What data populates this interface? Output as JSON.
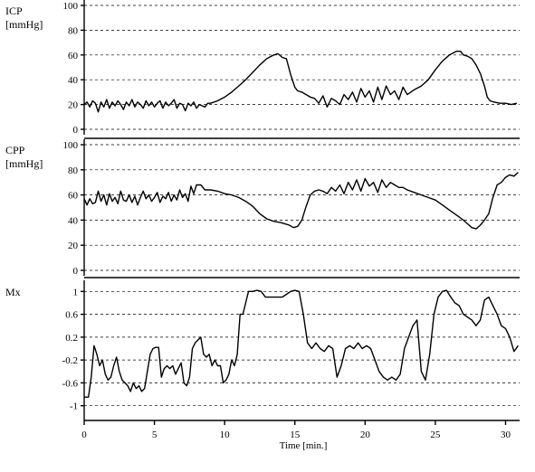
{
  "chart_data": [
    {
      "type": "line",
      "name_label": "ICP",
      "unit_label": "[mmHg]",
      "ylim": [
        0,
        100
      ],
      "yticks": [
        0,
        20,
        40,
        60,
        80,
        100
      ],
      "ytick_labels": [
        "0",
        "20",
        "40",
        "60",
        "80",
        "100"
      ],
      "grid": true,
      "series": [
        {
          "x": [
            0.0,
            0.2,
            0.4,
            0.6,
            0.8,
            1.0,
            1.2,
            1.4,
            1.6,
            1.8,
            2.0,
            2.2,
            2.4,
            2.6,
            2.8,
            3.0,
            3.2,
            3.4,
            3.6,
            3.8,
            4.0,
            4.2,
            4.4,
            4.6,
            4.8,
            5.0,
            5.2,
            5.4,
            5.6,
            5.8,
            6.0,
            6.2,
            6.4,
            6.6,
            6.8,
            7.0,
            7.2,
            7.4,
            7.6,
            7.8,
            8.0,
            8.2,
            8.4,
            8.6,
            8.8,
            9.0,
            9.5,
            10.0,
            10.5,
            11.0,
            11.5,
            12.0,
            12.5,
            13.0,
            13.5,
            13.8,
            14.1,
            14.4,
            14.7,
            15.0,
            15.2,
            15.5,
            15.8,
            16.1,
            16.4,
            16.7,
            17.0,
            17.3,
            17.6,
            17.9,
            18.2,
            18.5,
            18.8,
            19.1,
            19.4,
            19.7,
            20.0,
            20.3,
            20.6,
            20.9,
            21.2,
            21.5,
            21.8,
            22.1,
            22.4,
            22.7,
            23.0,
            23.5,
            24.0,
            24.5,
            25.0,
            25.5,
            26.0,
            26.5,
            26.8,
            27.0,
            27.3,
            27.6,
            27.9,
            28.2,
            28.5,
            28.7,
            28.9,
            29.2,
            29.6,
            30.0,
            30.4,
            30.8
          ],
          "y": [
            20,
            22,
            18,
            23,
            21,
            14,
            22,
            18,
            24,
            17,
            22,
            19,
            23,
            20,
            16,
            22,
            19,
            24,
            18,
            22,
            20,
            17,
            23,
            19,
            22,
            18,
            21,
            23,
            17,
            22,
            19,
            21,
            24,
            17,
            21,
            20,
            15,
            21,
            19,
            22,
            17,
            20,
            19,
            18,
            21,
            21,
            23,
            26,
            30,
            35,
            40,
            46,
            52,
            57,
            60,
            61,
            58,
            57,
            44,
            34,
            31,
            30,
            28,
            26,
            25,
            21,
            27,
            18,
            25,
            23,
            20,
            28,
            24,
            30,
            22,
            33,
            26,
            31,
            22,
            34,
            24,
            35,
            28,
            31,
            24,
            34,
            28,
            32,
            35,
            40,
            48,
            55,
            60,
            63,
            63,
            60,
            59,
            57,
            52,
            45,
            35,
            26,
            23,
            22,
            21,
            21,
            20,
            21
          ]
        }
      ]
    },
    {
      "type": "line",
      "name_label": "CPP",
      "unit_label": "[mmHg]",
      "ylim": [
        0,
        100
      ],
      "yticks": [
        0,
        20,
        40,
        60,
        80,
        100
      ],
      "ytick_labels": [
        "0",
        "20",
        "40",
        "60",
        "80",
        "100"
      ],
      "grid": true,
      "series": [
        {
          "x": [
            0.0,
            0.2,
            0.4,
            0.6,
            0.8,
            1.0,
            1.2,
            1.4,
            1.6,
            1.8,
            2.0,
            2.2,
            2.4,
            2.6,
            2.8,
            3.0,
            3.2,
            3.4,
            3.6,
            3.8,
            4.0,
            4.2,
            4.4,
            4.6,
            4.8,
            5.0,
            5.2,
            5.4,
            5.6,
            5.8,
            6.0,
            6.2,
            6.4,
            6.6,
            6.8,
            7.0,
            7.2,
            7.4,
            7.6,
            7.8,
            8.0,
            8.3,
            8.6,
            9.0,
            9.5,
            10.0,
            10.5,
            11.0,
            11.5,
            12.0,
            12.5,
            13.0,
            13.5,
            14.0,
            14.3,
            14.6,
            14.9,
            15.2,
            15.5,
            15.8,
            16.1,
            16.4,
            16.7,
            17.0,
            17.3,
            17.6,
            17.9,
            18.2,
            18.5,
            18.8,
            19.1,
            19.4,
            19.7,
            20.0,
            20.3,
            20.6,
            20.9,
            21.2,
            21.5,
            21.8,
            22.1,
            22.4,
            22.7,
            23.0,
            23.5,
            24.0,
            24.5,
            25.0,
            25.5,
            26.0,
            26.5,
            27.0,
            27.3,
            27.6,
            27.9,
            28.2,
            28.5,
            28.8,
            29.1,
            29.4,
            29.7,
            30.0,
            30.3,
            30.6,
            30.9
          ],
          "y": [
            57,
            52,
            57,
            53,
            54,
            63,
            55,
            60,
            52,
            61,
            55,
            58,
            53,
            63,
            56,
            55,
            60,
            54,
            59,
            52,
            58,
            63,
            57,
            60,
            55,
            58,
            62,
            54,
            59,
            57,
            62,
            55,
            60,
            56,
            64,
            58,
            61,
            55,
            67,
            61,
            68,
            68,
            64,
            64,
            63,
            61,
            60,
            58,
            55,
            51,
            45,
            41,
            39,
            38,
            37,
            36,
            34,
            35,
            40,
            51,
            60,
            63,
            64,
            63,
            61,
            66,
            63,
            68,
            61,
            70,
            64,
            72,
            63,
            73,
            67,
            70,
            62,
            72,
            66,
            70,
            68,
            66,
            66,
            64,
            62,
            60,
            58,
            56,
            52,
            48,
            44,
            40,
            37,
            34,
            33,
            36,
            40,
            45,
            58,
            68,
            70,
            74,
            76,
            75,
            78
          ]
        }
      ]
    },
    {
      "type": "line",
      "name_label": "Mx",
      "unit_label": "",
      "ylim": [
        -1.1,
        1.1
      ],
      "yticks": [
        1,
        0.6,
        0.2,
        -0.2,
        -0.6,
        -1
      ],
      "ytick_labels": [
        "1",
        "0.6",
        "0.2",
        "-0.2",
        "-0.6",
        "-1"
      ],
      "xlabel": "Time  [min.]",
      "xlim": [
        0,
        31
      ],
      "xticks": [
        0,
        5,
        10,
        15,
        20,
        25,
        30
      ],
      "xtick_labels": [
        "0",
        "5",
        "10",
        "15",
        "20",
        "25",
        "30"
      ],
      "grid": true,
      "series": [
        {
          "x": [
            0.0,
            0.3,
            0.5,
            0.7,
            0.9,
            1.1,
            1.3,
            1.5,
            1.7,
            1.9,
            2.1,
            2.3,
            2.5,
            2.7,
            2.9,
            3.1,
            3.3,
            3.5,
            3.7,
            3.9,
            4.1,
            4.3,
            4.5,
            4.7,
            4.9,
            5.1,
            5.3,
            5.5,
            5.7,
            5.9,
            6.1,
            6.3,
            6.5,
            6.7,
            6.9,
            7.1,
            7.3,
            7.5,
            7.7,
            7.9,
            8.1,
            8.3,
            8.5,
            8.7,
            8.9,
            9.1,
            9.3,
            9.5,
            9.7,
            9.9,
            10.1,
            10.3,
            10.5,
            10.7,
            10.9,
            11.1,
            11.3,
            11.5,
            11.7,
            12.0,
            12.3,
            12.6,
            12.9,
            13.2,
            13.5,
            13.8,
            14.1,
            14.4,
            14.7,
            15.0,
            15.3,
            15.6,
            15.9,
            16.2,
            16.5,
            16.8,
            17.1,
            17.4,
            17.7,
            18.0,
            18.3,
            18.6,
            18.9,
            19.2,
            19.5,
            19.8,
            20.1,
            20.4,
            20.7,
            21.0,
            21.3,
            21.6,
            21.9,
            22.2,
            22.5,
            22.8,
            23.1,
            23.4,
            23.7,
            24.0,
            24.3,
            24.6,
            24.9,
            25.2,
            25.5,
            25.8,
            26.1,
            26.4,
            26.7,
            27.0,
            27.3,
            27.6,
            27.9,
            28.2,
            28.5,
            28.8,
            29.1,
            29.4,
            29.7,
            30.0,
            30.3,
            30.6,
            30.9
          ],
          "y": [
            -0.85,
            -0.85,
            -0.5,
            0.05,
            -0.1,
            -0.3,
            -0.2,
            -0.45,
            -0.55,
            -0.5,
            -0.3,
            -0.15,
            -0.4,
            -0.55,
            -0.6,
            -0.65,
            -0.75,
            -0.6,
            -0.7,
            -0.65,
            -0.75,
            -0.7,
            -0.4,
            -0.1,
            0.0,
            0.02,
            0.02,
            -0.5,
            -0.35,
            -0.3,
            -0.35,
            -0.3,
            -0.45,
            -0.35,
            -0.25,
            -0.6,
            -0.65,
            -0.5,
            0.0,
            0.1,
            0.15,
            0.2,
            -0.1,
            -0.15,
            -0.1,
            -0.3,
            -0.2,
            -0.3,
            -0.3,
            -0.6,
            -0.55,
            -0.45,
            -0.2,
            -0.3,
            -0.1,
            0.6,
            0.6,
            0.8,
            1.0,
            1.0,
            1.02,
            1.0,
            0.9,
            0.9,
            0.9,
            0.9,
            0.9,
            0.95,
            1.0,
            1.02,
            1.0,
            0.6,
            0.1,
            0.0,
            0.1,
            0.0,
            -0.05,
            0.05,
            0.0,
            -0.5,
            -0.3,
            0.0,
            0.05,
            0.0,
            0.1,
            0.0,
            0.05,
            0.0,
            -0.2,
            -0.4,
            -0.5,
            -0.55,
            -0.5,
            -0.55,
            -0.45,
            0.0,
            0.2,
            0.4,
            0.5,
            -0.4,
            -0.55,
            -0.1,
            0.6,
            0.9,
            1.0,
            1.02,
            0.9,
            0.8,
            0.75,
            0.6,
            0.55,
            0.5,
            0.4,
            0.5,
            0.85,
            0.9,
            0.75,
            0.6,
            0.4,
            0.35,
            0.2,
            -0.05,
            0.05
          ]
        }
      ]
    }
  ]
}
